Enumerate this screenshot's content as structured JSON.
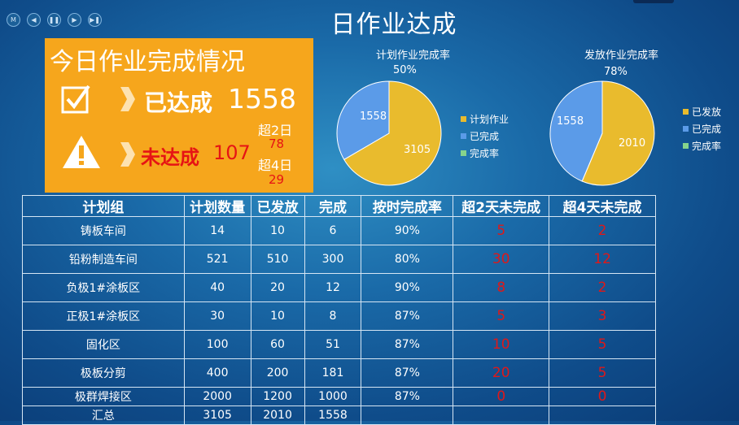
{
  "player": {
    "controls": [
      {
        "name": "menu-button",
        "glyph": "M"
      },
      {
        "name": "previous-button",
        "glyph": "◀"
      },
      {
        "name": "pause-button",
        "glyph": "❚❚"
      },
      {
        "name": "play-button",
        "glyph": "▶"
      },
      {
        "name": "next-button",
        "glyph": "▶❚"
      }
    ]
  },
  "title": "日作业达成",
  "status": {
    "heading": "今日作业完成情况",
    "done_label": "已达成",
    "done_value": "1558",
    "undone_label": "未达成",
    "undone_value": "107",
    "over2_label": "超2日",
    "over2_value": "78",
    "over4_label": "超4日",
    "over4_value": "29",
    "icons": [
      "checkbox-icon",
      "warning-icon",
      "chevron-right-icon"
    ]
  },
  "colors": {
    "orange": "#f6a61c",
    "red": "#e01818",
    "pie_yellow": "#e9bb2d",
    "pie_blue": "#5b9be8",
    "pie_green": "#86d48c"
  },
  "pie1": {
    "title": "计划作业完成率",
    "pct": "50%",
    "planned": 3105,
    "completed": 1558,
    "planned_label": "3105",
    "completed_label": "1558",
    "legend": [
      "计划作业",
      "已完成",
      "完成率"
    ]
  },
  "pie2": {
    "title": "发放作业完成率",
    "pct": "78%",
    "issued": 2010,
    "completed": 1558,
    "issued_label": "2010",
    "completed_label": "1558",
    "legend": [
      "已发放",
      "已完成",
      "完成率"
    ]
  },
  "table": {
    "headers": [
      "计划组",
      "计划数量",
      "已发放",
      "完成",
      "按时完成率",
      "超2天未完成",
      "超4天未完成"
    ],
    "rows": [
      [
        "铸板车间",
        "14",
        "10",
        "6",
        "90%",
        "5",
        "2"
      ],
      [
        "铅粉制造车间",
        "521",
        "510",
        "300",
        "80%",
        "30",
        "12"
      ],
      [
        "负极1#涂板区",
        "40",
        "20",
        "12",
        "90%",
        "8",
        "2"
      ],
      [
        "正极1#涂板区",
        "30",
        "10",
        "8",
        "87%",
        "5",
        "3"
      ],
      [
        "固化区",
        "100",
        "60",
        "51",
        "87%",
        "10",
        "5"
      ],
      [
        "极板分剪",
        "400",
        "200",
        "181",
        "87%",
        "20",
        "5"
      ],
      [
        "极群焊接区",
        "2000",
        "1200",
        "1000",
        "87%",
        "0",
        "0"
      ],
      [
        "汇总",
        "3105",
        "2010",
        "1558",
        "",
        "",
        ""
      ]
    ]
  }
}
